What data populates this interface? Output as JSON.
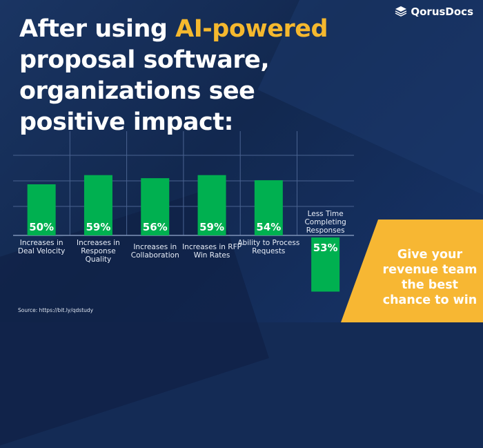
{
  "brand": {
    "name": "QorusDocs",
    "icon": "stacked-pages-icon"
  },
  "title": {
    "before": "After using ",
    "highlight": "AI-powered",
    "after": " proposal software, organizations see positive impact:"
  },
  "colors": {
    "bar": "#00b050",
    "highlight": "#f5b82e",
    "background": "#142b55",
    "cta": "#f7b733"
  },
  "chart_data": {
    "type": "bar",
    "categories": [
      "Increases in Deal Velocity",
      "Increases in Response Quality",
      "Increases in Collaboration",
      "Increases in RFP Win Rates",
      "Ability to Process Requests",
      "Less Time Completing Responses"
    ],
    "values": [
      50,
      59,
      56,
      59,
      54,
      53
    ],
    "data_labels": [
      "50%",
      "59%",
      "56%",
      "59%",
      "54%",
      "53%"
    ],
    "grid": true,
    "note": "last bar drawn downward below baseline"
  },
  "cta": {
    "text": "Give your revenue team the best chance to win"
  },
  "source": "Source: https://bit.ly/qdstudy"
}
